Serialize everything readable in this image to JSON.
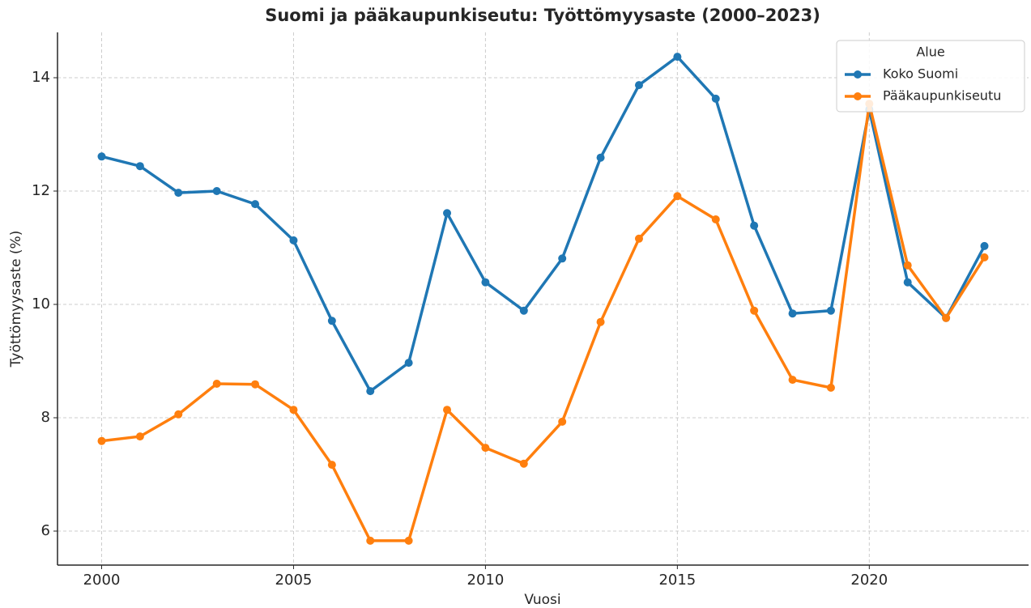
{
  "chart_data": {
    "type": "line",
    "title": "Suomi ja pääkaupunkiseutu: Työttömyysaste (2000–2023)",
    "x_label": "Vuosi",
    "y_label": "Työttömyysaste (%)",
    "x": [
      2000,
      2001,
      2002,
      2003,
      2004,
      2005,
      2006,
      2007,
      2008,
      2009,
      2010,
      2011,
      2012,
      2013,
      2014,
      2015,
      2016,
      2017,
      2018,
      2019,
      2020,
      2021,
      2022,
      2023
    ],
    "series": [
      {
        "name": "Koko Suomi",
        "color": "#1f77b4",
        "values": [
          12.61,
          12.44,
          11.97,
          12.0,
          11.77,
          11.13,
          9.71,
          8.47,
          8.97,
          11.61,
          10.39,
          9.89,
          10.81,
          12.59,
          13.87,
          14.37,
          13.63,
          11.39,
          9.84,
          9.89,
          13.44,
          10.39,
          9.76,
          11.03
        ]
      },
      {
        "name": "Pääkaupunkiseutu",
        "color": "#ff7f0e",
        "values": [
          7.59,
          7.67,
          8.06,
          8.6,
          8.59,
          8.14,
          7.17,
          5.83,
          5.83,
          8.14,
          7.47,
          7.19,
          7.93,
          9.69,
          11.16,
          11.91,
          11.5,
          9.89,
          8.67,
          8.53,
          13.54,
          10.69,
          9.76,
          10.83
        ]
      }
    ],
    "legend_title": "Alue",
    "legend": "upper right",
    "xlim": [
      1998.85,
      2024.15
    ],
    "xticks": [
      2000,
      2005,
      2010,
      2015,
      2020
    ],
    "ylim": [
      5.4,
      14.8
    ],
    "yticks": [
      6,
      8,
      10,
      12,
      14
    ],
    "grid": true
  }
}
